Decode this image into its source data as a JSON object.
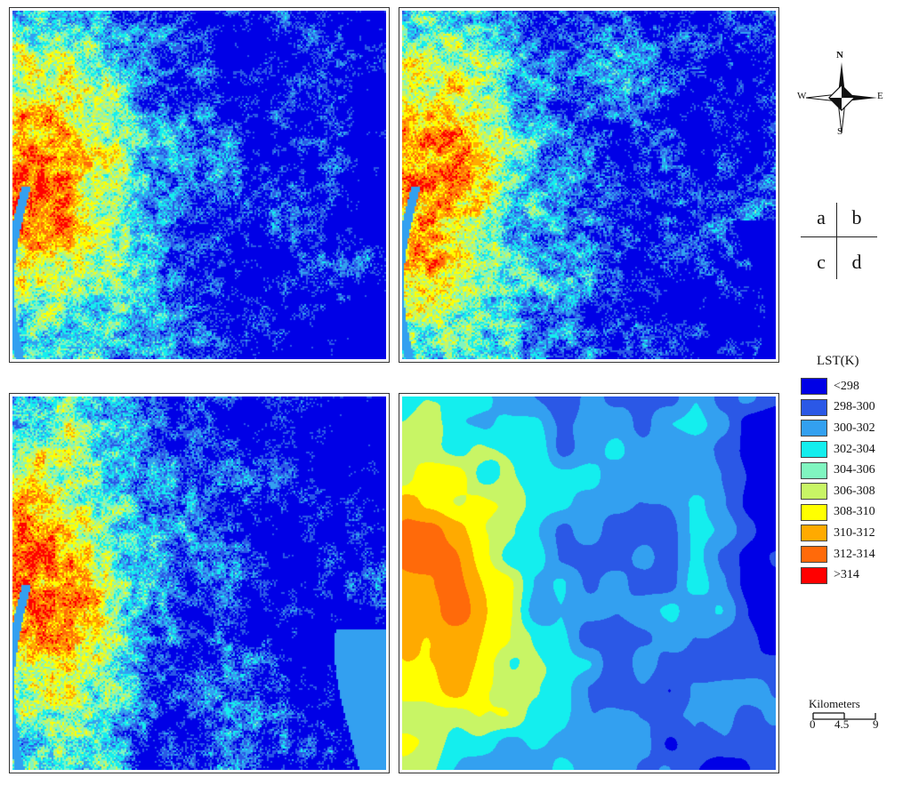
{
  "panels": [
    {
      "id": "a",
      "seed": 11,
      "ramp": 0.47,
      "mode": "pixel",
      "edge": "east-blocky"
    },
    {
      "id": "b",
      "seed": 23,
      "ramp": 0.4,
      "mode": "pixel",
      "edge": "east-smooth"
    },
    {
      "id": "c",
      "seed": 37,
      "ramp": 0.52,
      "mode": "pixel",
      "edge": "east-light"
    },
    {
      "id": "d",
      "seed": 53,
      "ramp": 0.5,
      "mode": "contour",
      "edge": "none"
    }
  ],
  "compass": {
    "north": "N",
    "south": "S",
    "east": "E",
    "west": "W"
  },
  "panel_key": {
    "top_left": "a",
    "top_right": "b",
    "bottom_left": "c",
    "bottom_right": "d"
  },
  "legend": {
    "title": "LST(K)",
    "classes": [
      {
        "label": "<298",
        "color": "#0000e6"
      },
      {
        "label": "298-300",
        "color": "#2b58e6"
      },
      {
        "label": "300-302",
        "color": "#33a0f0"
      },
      {
        "label": "302-304",
        "color": "#14eeee"
      },
      {
        "label": "304-306",
        "color": "#80f5c0"
      },
      {
        "label": "306-308",
        "color": "#c8f565"
      },
      {
        "label": "308-310",
        "color": "#ffff00"
      },
      {
        "label": "310-312",
        "color": "#ffaa00"
      },
      {
        "label": "312-314",
        "color": "#ff6a0a"
      },
      {
        "label": ">314",
        "color": "#ff0000"
      }
    ]
  },
  "scalebar": {
    "title": "Kilometers",
    "ticks": [
      "0",
      "4.5",
      "9"
    ]
  }
}
